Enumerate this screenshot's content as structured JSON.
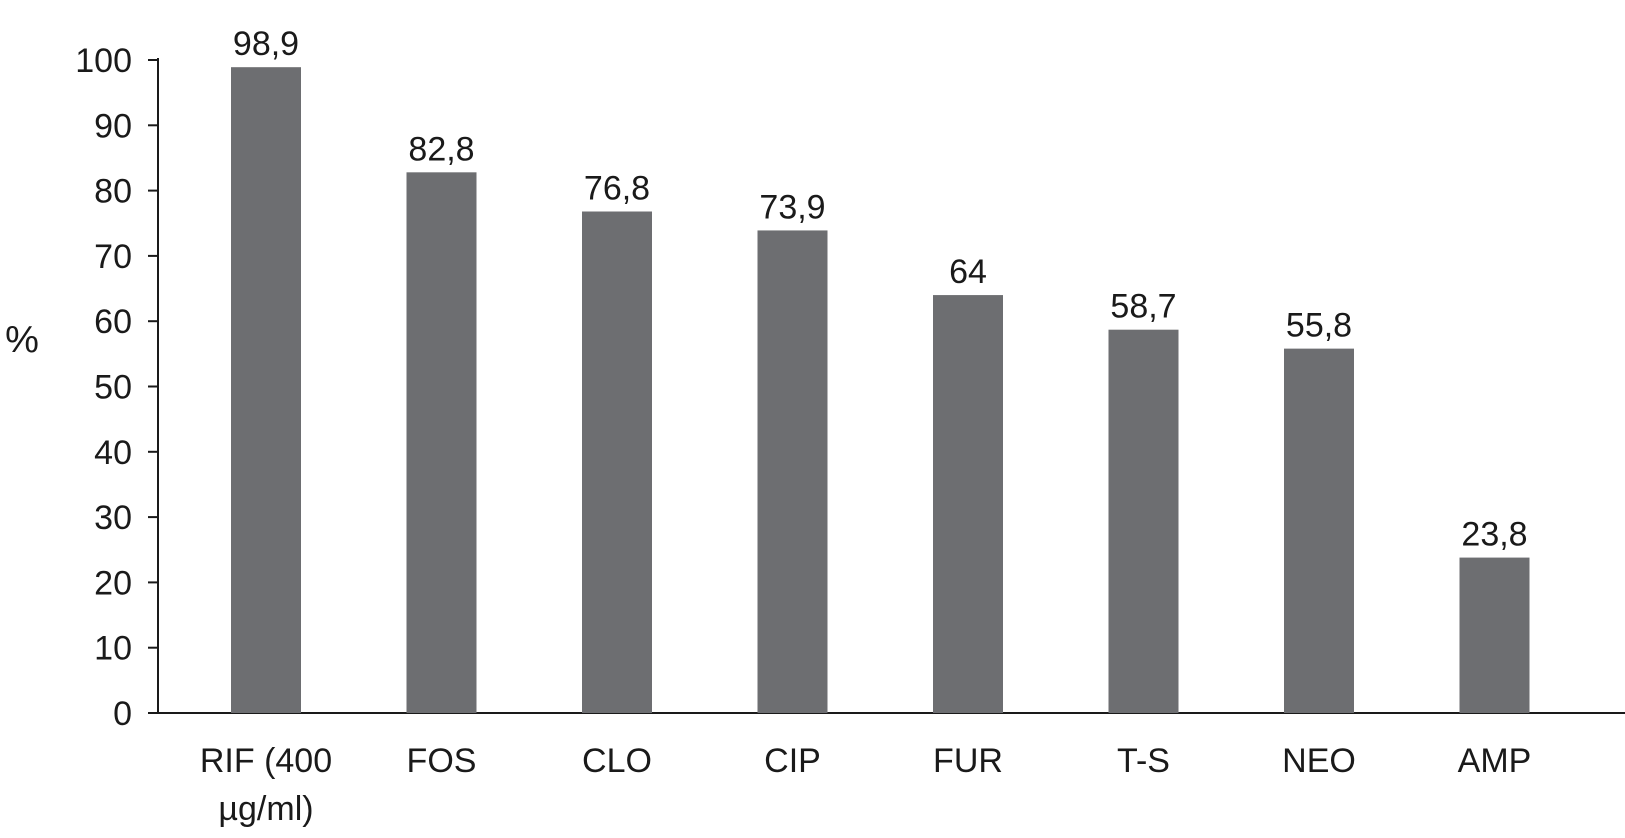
{
  "chart_data": {
    "type": "bar",
    "title": "",
    "xlabel": "",
    "ylabel": "%",
    "ylim": [
      0,
      100
    ],
    "yticks": [
      0,
      10,
      20,
      30,
      40,
      50,
      60,
      70,
      80,
      90,
      100
    ],
    "grid": false,
    "legend": "none",
    "categories": [
      [
        "RIF (400",
        "µg/ml)"
      ],
      [
        "FOS"
      ],
      [
        "CLO"
      ],
      [
        "CIP"
      ],
      [
        "FUR"
      ],
      [
        "T-S"
      ],
      [
        "NEO"
      ],
      [
        "AMP"
      ]
    ],
    "values": [
      98.9,
      82.8,
      76.8,
      73.9,
      64,
      58.7,
      55.8,
      23.8
    ],
    "value_labels": [
      "98,9",
      "82,8",
      "76,8",
      "73,9",
      "64",
      "58,7",
      "55,8",
      "23,8"
    ],
    "colors": {
      "bar": "#6d6e71",
      "axis": "#1a1a1a",
      "text": "#1a1a1a"
    }
  }
}
